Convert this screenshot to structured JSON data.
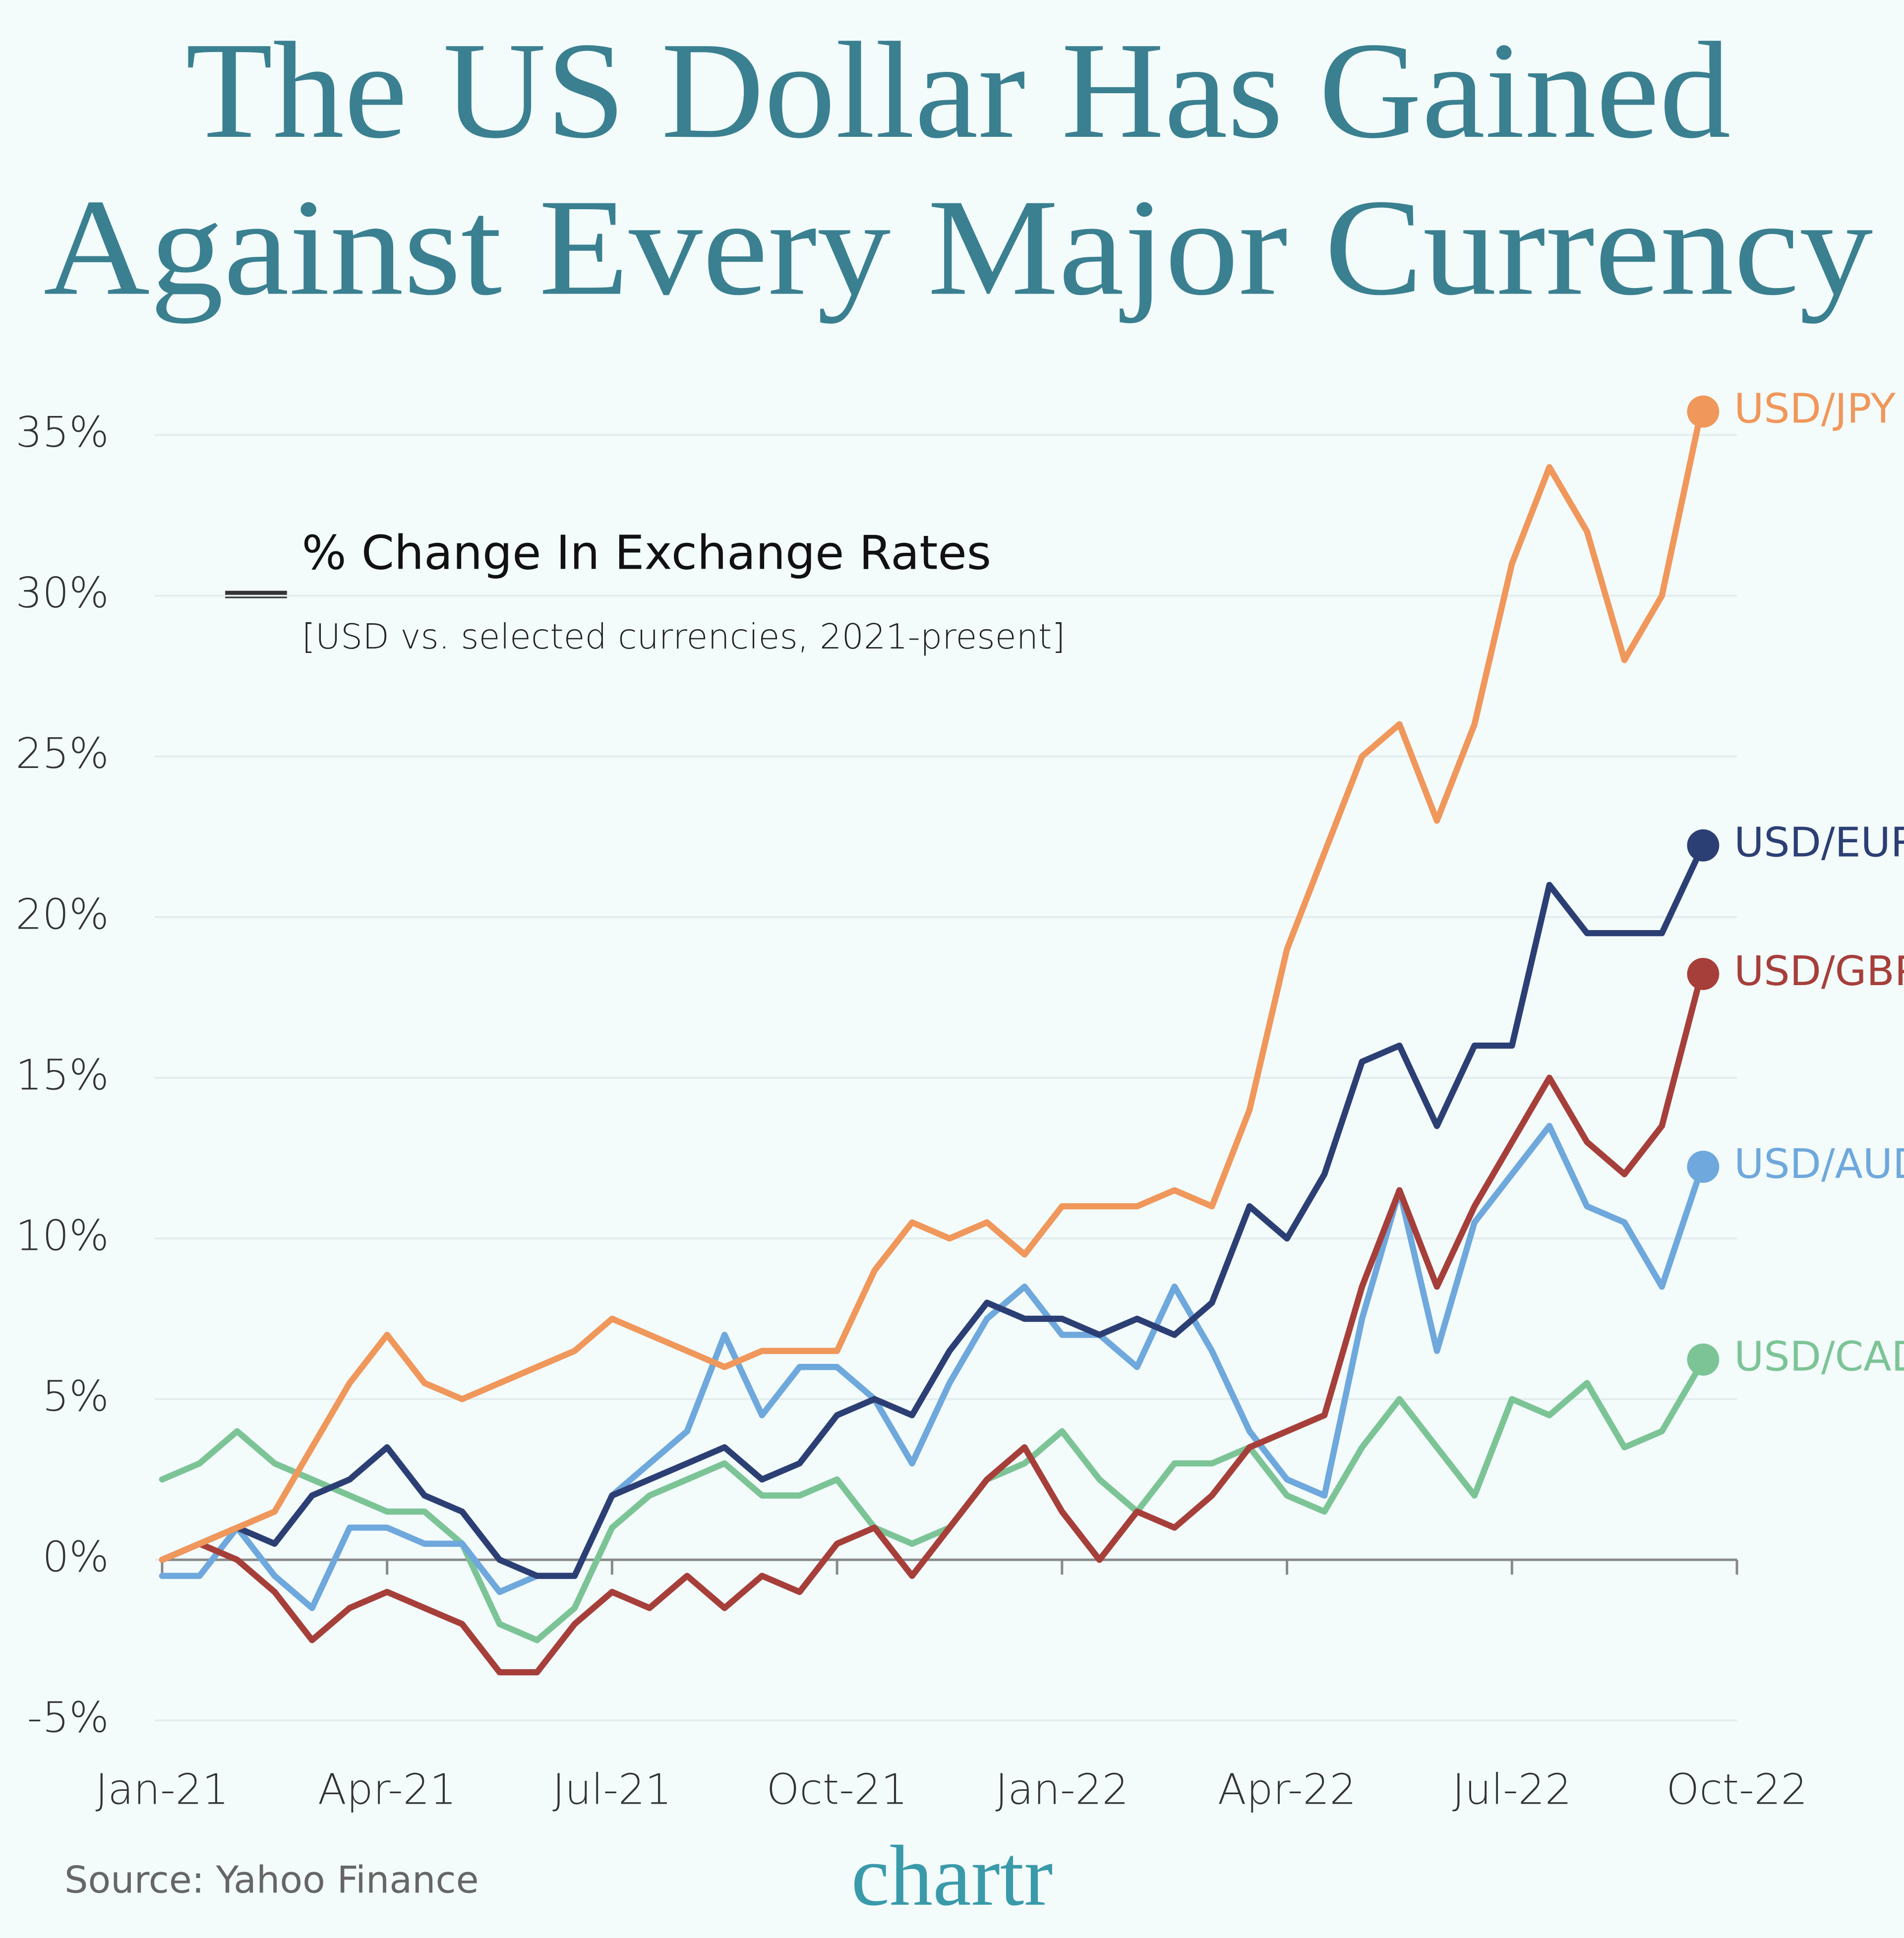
{
  "chart_data": {
    "type": "line",
    "title": [
      "The US Dollar Has Gained",
      "Against Every Major Currency"
    ],
    "subtitle": "% Change In Exchange Rates",
    "note": "[USD vs. selected currencies, 2021-present]",
    "source": "Source: Yahoo Finance",
    "brand": "chartr",
    "categories": [
      "Jan-21",
      null,
      null,
      null,
      null,
      null,
      "Apr-21",
      null,
      null,
      null,
      null,
      null,
      "Jul-21",
      null,
      null,
      null,
      null,
      null,
      "Oct-21",
      null,
      null,
      null,
      null,
      null,
      "Jan-22",
      null,
      null,
      null,
      null,
      null,
      "Apr-22",
      null,
      null,
      null,
      null,
      null,
      "Jul-22",
      null,
      null,
      null,
      null,
      null,
      "Oct-22"
    ],
    "ylim": [
      -5,
      35
    ],
    "yticks": [
      {
        "value": -5,
        "label": "-5%"
      },
      {
        "value": 0,
        "label": "0%"
      },
      {
        "value": 5,
        "label": "5%"
      },
      {
        "value": 10,
        "label": "10%"
      },
      {
        "value": 15,
        "label": "15%"
      },
      {
        "value": 20,
        "label": "20%"
      },
      {
        "value": 25,
        "label": "25%"
      },
      {
        "value": 30,
        "label": "30%"
      },
      {
        "value": 35,
        "label": "35%"
      }
    ],
    "grid": true,
    "series": [
      {
        "name": "USD/CAD",
        "color": "#7cc496",
        "values": [
          2.5,
          3,
          4,
          3,
          2.5,
          2,
          1.5,
          1.5,
          0.5,
          -2,
          -2.5,
          -1.5,
          1,
          2,
          2.5,
          3,
          2,
          2,
          2.5,
          1,
          0.5,
          1,
          2.5,
          3,
          4,
          2.5,
          1.5,
          3,
          3,
          3.5,
          2,
          1.5,
          3.5,
          5,
          3.5,
          2,
          5,
          4.5,
          5.5,
          3.5,
          4,
          6,
          null
        ]
      },
      {
        "name": "USD/AUD",
        "color": "#6ea8dc",
        "values": [
          -0.5,
          -0.5,
          1,
          -0.5,
          -1.5,
          1,
          1,
          0.5,
          0.5,
          -1,
          -0.5,
          -0.5,
          2,
          3,
          4,
          7,
          4.5,
          6,
          6,
          5,
          3,
          5.5,
          7.5,
          8.5,
          7,
          7,
          6,
          8.5,
          6.5,
          4,
          2.5,
          2,
          7.5,
          11.5,
          6.5,
          10.5,
          12,
          13.5,
          11,
          10.5,
          8.5,
          12,
          null
        ]
      },
      {
        "name": "USD/GBP",
        "color": "#a63f3a",
        "values": [
          0,
          0.5,
          0,
          -1,
          -2.5,
          -1.5,
          -1,
          -1.5,
          -2,
          -3.5,
          -3.5,
          -2,
          -1,
          -1.5,
          -0.5,
          -1.5,
          -0.5,
          -1,
          0.5,
          1,
          -0.5,
          1,
          2.5,
          3.5,
          1.5,
          0,
          1.5,
          1,
          2,
          3.5,
          4,
          4.5,
          8.5,
          11.5,
          8.5,
          11,
          13,
          15,
          13,
          12,
          13.5,
          18,
          null
        ]
      },
      {
        "name": "USD/EUR",
        "color": "#2c3f74",
        "values": [
          0,
          0.5,
          1,
          0.5,
          2,
          2.5,
          3.5,
          2,
          1.5,
          0,
          -0.5,
          -0.5,
          2,
          2.5,
          3,
          3.5,
          2.5,
          3,
          4.5,
          5,
          4.5,
          6.5,
          8,
          7.5,
          7.5,
          7,
          7.5,
          7,
          8,
          11,
          10,
          12,
          15.5,
          16,
          13.5,
          16,
          16,
          21,
          19.5,
          19.5,
          19.5,
          22,
          null
        ]
      },
      {
        "name": "USD/JPY",
        "color": "#f0975b",
        "values": [
          0,
          0.5,
          1,
          1.5,
          3.5,
          5.5,
          7,
          5.5,
          5,
          5.5,
          6,
          6.5,
          7.5,
          7,
          6.5,
          6,
          6.5,
          6.5,
          6.5,
          9,
          10.5,
          10,
          10.5,
          9.5,
          11,
          11,
          11,
          11.5,
          11,
          14,
          19,
          22,
          25,
          26,
          23,
          26,
          31,
          34,
          32,
          28,
          30,
          35.5,
          null
        ]
      }
    ]
  }
}
